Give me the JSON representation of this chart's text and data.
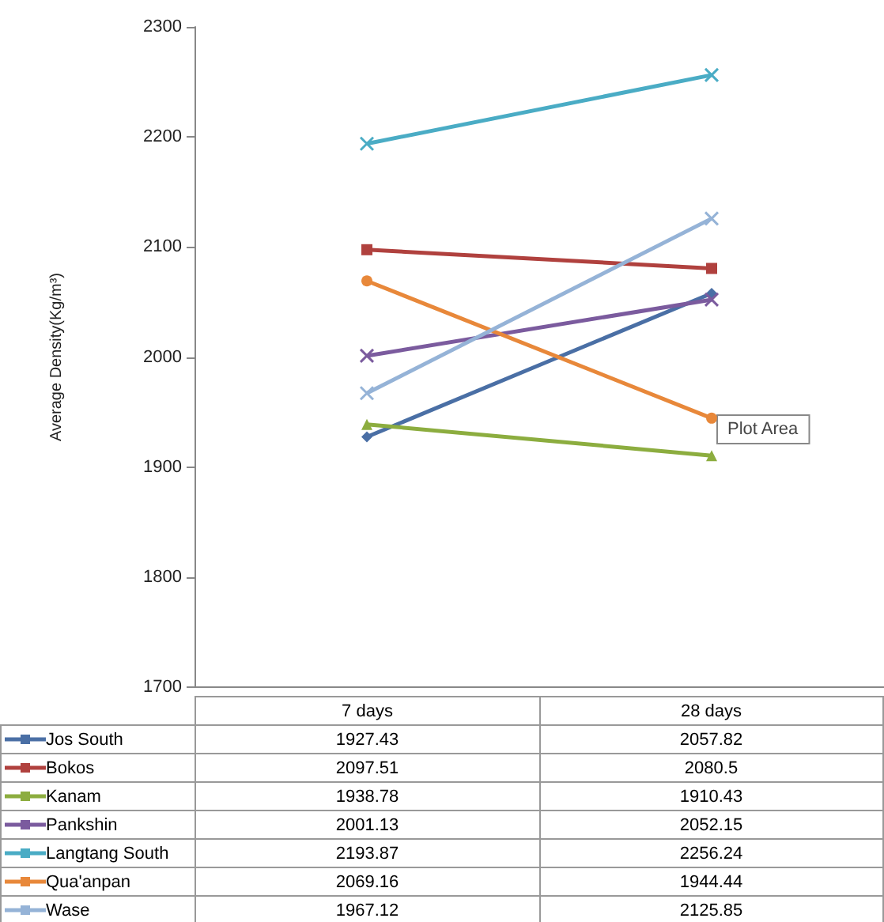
{
  "chart_data": {
    "type": "line",
    "ylabel": "Average Density(Kg/m³)",
    "categories": [
      "7 days",
      "28 days"
    ],
    "ylim": [
      1700,
      2300
    ],
    "yticks": [
      1700,
      1800,
      1900,
      2000,
      2100,
      2200,
      2300
    ],
    "grid": false,
    "data_labels": true,
    "legend": "bottom",
    "annotations": [
      "Plot Area"
    ],
    "series": [
      {
        "name": "Jos South",
        "color": "#4a6fa5",
        "marker": "diamond",
        "values": [
          1927.43,
          2057.82
        ]
      },
      {
        "name": "Bokos",
        "color": "#b0413e",
        "marker": "square",
        "values": [
          2097.51,
          2080.5
        ]
      },
      {
        "name": "Kanam",
        "color": "#8cad3f",
        "marker": "triangle",
        "values": [
          1938.78,
          1910.43
        ]
      },
      {
        "name": "Pankshin",
        "color": "#7b5b9e",
        "marker": "cross",
        "values": [
          2001.13,
          2052.15
        ]
      },
      {
        "name": "Langtang South",
        "color": "#4aacc5",
        "marker": "cross",
        "values": [
          2193.87,
          2256.24
        ]
      },
      {
        "name": "Qua'anpan",
        "color": "#e8883a",
        "marker": "circle",
        "values": [
          2069.16,
          1944.44
        ]
      },
      {
        "name": "Wase",
        "color": "#95b3d7",
        "marker": "cross",
        "values": [
          1967.12,
          2125.85
        ]
      }
    ]
  }
}
